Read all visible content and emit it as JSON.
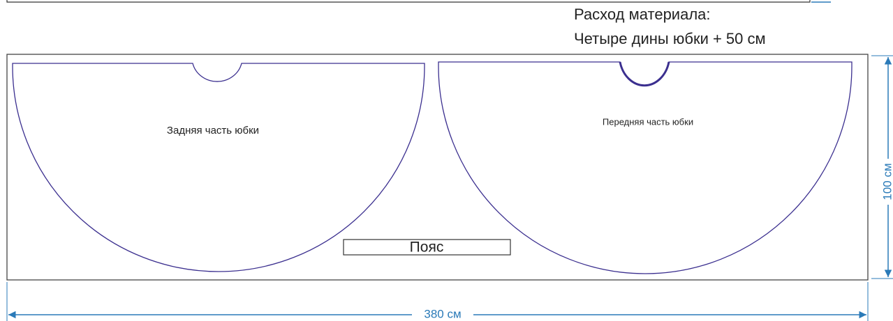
{
  "header": {
    "lines": [
      "Расход материала:",
      "Четыре дины юбки + 50 см"
    ]
  },
  "pieces": [
    {
      "label": "Задняя часть юбки"
    },
    {
      "label": "Передняя часть юбки"
    }
  ],
  "belt": {
    "label": "Пояс"
  },
  "dimensions": {
    "height": "100 см",
    "width": "380 см"
  }
}
